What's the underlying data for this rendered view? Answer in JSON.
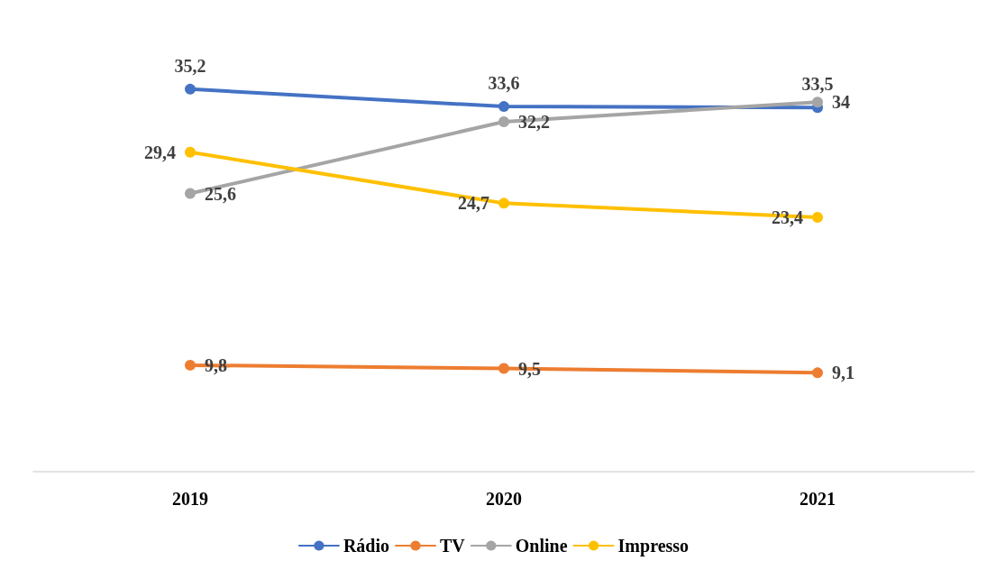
{
  "chart_data": {
    "type": "line",
    "categories": [
      "2019",
      "2020",
      "2021"
    ],
    "series": [
      {
        "name": "Rádio",
        "color": "#4472c4",
        "values": [
          35.2,
          33.6,
          33.5
        ],
        "value_labels": [
          "35,2",
          "33,6",
          "33,5"
        ]
      },
      {
        "name": "TV",
        "color": "#ed7d31",
        "values": [
          9.8,
          9.5,
          9.1
        ],
        "value_labels": [
          "9,8",
          "9,5",
          "9,1"
        ]
      },
      {
        "name": "Online",
        "color": "#a5a5a5",
        "values": [
          25.6,
          32.2,
          34
        ],
        "value_labels": [
          "25,6",
          "32,2",
          "34"
        ]
      },
      {
        "name": "Impresso",
        "color": "#ffc000",
        "values": [
          29.4,
          24.7,
          23.4
        ],
        "value_labels": [
          "29,4",
          "24,7",
          "23,4"
        ]
      }
    ],
    "marker": "circle",
    "line_style": "solid",
    "grid": false,
    "legend": "bottom",
    "tick_labels": "x"
  }
}
